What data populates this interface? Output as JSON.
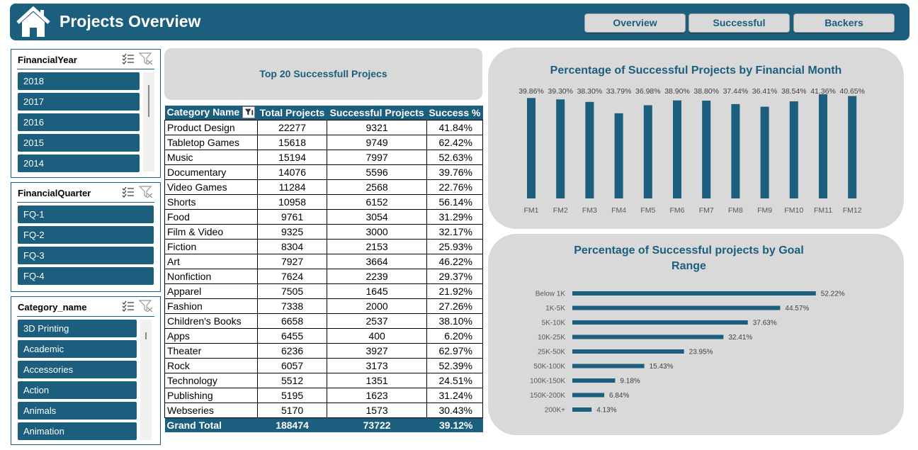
{
  "header": {
    "title": "Projects Overview",
    "nav": [
      "Overview",
      "Successful",
      "Backers"
    ]
  },
  "slicers": [
    {
      "title": "FinancialYear",
      "items": [
        "2018",
        "2017",
        "2016",
        "2015",
        "2014"
      ]
    },
    {
      "title": "FinancialQuarter",
      "items": [
        "FQ-1",
        "FQ-2",
        "FQ-3",
        "FQ-4"
      ]
    },
    {
      "title": "Category_name",
      "items": [
        "3D Printing",
        "Academic",
        "Accessories",
        "Action",
        "Animals",
        "Animation"
      ]
    }
  ],
  "table": {
    "title": "Top 20 Successfull Projecs",
    "headers": [
      "Category Name",
      "Total Projects",
      "Successful Projects",
      "Success %"
    ],
    "rows": [
      [
        "Product Design",
        "22277",
        "9321",
        "41.84%"
      ],
      [
        "Tabletop Games",
        "15618",
        "9749",
        "62.42%"
      ],
      [
        "Music",
        "15194",
        "7997",
        "52.63%"
      ],
      [
        "Documentary",
        "14076",
        "5596",
        "39.76%"
      ],
      [
        "Video Games",
        "11284",
        "2568",
        "22.76%"
      ],
      [
        "Shorts",
        "10958",
        "6152",
        "56.14%"
      ],
      [
        "Food",
        "9761",
        "3054",
        "31.29%"
      ],
      [
        "Film & Video",
        "9325",
        "3000",
        "32.17%"
      ],
      [
        "Fiction",
        "8304",
        "2153",
        "25.93%"
      ],
      [
        "Art",
        "7927",
        "3664",
        "46.22%"
      ],
      [
        "Nonfiction",
        "7624",
        "2239",
        "29.37%"
      ],
      [
        "Apparel",
        "7505",
        "1645",
        "21.92%"
      ],
      [
        "Fashion",
        "7338",
        "2000",
        "27.26%"
      ],
      [
        "Children's Books",
        "6658",
        "2537",
        "38.10%"
      ],
      [
        "Apps",
        "6455",
        "400",
        "6.20%"
      ],
      [
        "Theater",
        "6236",
        "3927",
        "62.97%"
      ],
      [
        "Rock",
        "6057",
        "3173",
        "52.39%"
      ],
      [
        "Technology",
        "5512",
        "1351",
        "24.51%"
      ],
      [
        "Publishing",
        "5195",
        "1623",
        "31.24%"
      ],
      [
        "Webseries",
        "5170",
        "1573",
        "30.43%"
      ]
    ],
    "total": [
      "Grand Total",
      "188474",
      "73722",
      "39.12%"
    ]
  },
  "chart_data": [
    {
      "type": "bar",
      "title": "Percentage of Successful Projects by Financial Month",
      "categories": [
        "FM1",
        "FM2",
        "FM3",
        "FM4",
        "FM5",
        "FM6",
        "FM7",
        "FM8",
        "FM9",
        "FM10",
        "FM11",
        "FM12"
      ],
      "values": [
        39.86,
        39.3,
        38.3,
        33.79,
        36.98,
        38.9,
        38.8,
        37.44,
        36.41,
        38.54,
        41.36,
        40.65
      ],
      "labels": [
        "39.86%",
        "39.30%",
        "38.30%",
        "33.79%",
        "36.98%",
        "38.90%",
        "38.80%",
        "37.44%",
        "36.41%",
        "38.54%",
        "41.36%",
        "40.65%"
      ],
      "ylim": [
        0,
        45
      ],
      "grid": false,
      "color": "#1b5e7e"
    },
    {
      "type": "bar",
      "orientation": "horizontal",
      "title": "Percentage of Successful projects by Goal Range",
      "categories": [
        "Below 1K",
        "1K-5K",
        "5K-10K",
        "10K-25K",
        "25K-50K",
        "50K-100K",
        "100K-150K",
        "150K-200K",
        "200K+"
      ],
      "values": [
        52.22,
        44.57,
        37.63,
        32.41,
        23.95,
        15.43,
        9.18,
        6.84,
        4.13
      ],
      "labels": [
        "52.22%",
        "44.57%",
        "37.63%",
        "32.41%",
        "23.95%",
        "15.43%",
        "9.18%",
        "6.84%",
        "4.13%"
      ],
      "xlim": [
        0,
        60
      ],
      "grid": false,
      "color": "#1b5e7e"
    }
  ],
  "colors": {
    "primary": "#1b5e7e",
    "panel": "#d9d9d9"
  },
  "icons": {
    "home": "home-icon",
    "multi_select": "multi-select-icon",
    "clear_filter": "clear-filter-icon",
    "filter": "filter-icon"
  }
}
